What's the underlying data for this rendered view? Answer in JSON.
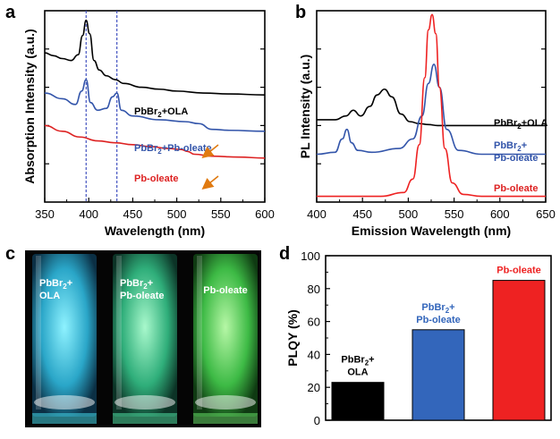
{
  "chart_data": [
    {
      "panel": "a",
      "type": "line",
      "xlabel": "Wavelength (nm)",
      "ylabel": "Absorption Intensity (a.u.)",
      "xlim": [
        350,
        600
      ],
      "xticks": [
        "350",
        "400",
        "450",
        "500",
        "550",
        "600"
      ],
      "grid": false,
      "reference_lines_x": [
        397,
        432
      ],
      "series": [
        {
          "name": "PbBr2+OLA",
          "color": "#000000",
          "x": [
            350,
            360,
            370,
            380,
            388,
            393,
            397,
            401,
            406,
            412,
            420,
            430,
            440,
            460,
            480,
            500,
            530,
            560,
            600
          ],
          "y": [
            0.78,
            0.765,
            0.75,
            0.74,
            0.77,
            0.87,
            0.95,
            0.88,
            0.74,
            0.69,
            0.66,
            0.64,
            0.62,
            0.6,
            0.59,
            0.58,
            0.57,
            0.565,
            0.56
          ]
        },
        {
          "name": "PbBr2+Pb-oleate",
          "color": "#3355aa",
          "x": [
            350,
            370,
            385,
            392,
            397,
            402,
            410,
            420,
            427,
            432,
            437,
            450,
            480,
            510,
            525,
            540,
            560,
            600
          ],
          "y": [
            0.57,
            0.54,
            0.51,
            0.58,
            0.64,
            0.52,
            0.48,
            0.49,
            0.55,
            0.57,
            0.48,
            0.45,
            0.43,
            0.42,
            0.41,
            0.38,
            0.375,
            0.37
          ]
        },
        {
          "name": "Pb-oleate",
          "color": "#dd2222",
          "x": [
            350,
            370,
            390,
            410,
            430,
            450,
            470,
            490,
            505,
            512,
            520,
            540,
            570,
            600
          ],
          "y": [
            0.4,
            0.37,
            0.34,
            0.32,
            0.31,
            0.3,
            0.29,
            0.28,
            0.275,
            0.265,
            0.25,
            0.24,
            0.235,
            0.23
          ]
        }
      ],
      "labels": {
        "ola": {
          "main": "PbBr",
          "sub": "2",
          "rest": "+OLA"
        },
        "mix": {
          "main": "PbBr",
          "sub": "2",
          "rest": "+Pb-oleate"
        },
        "pb": "Pb-oleate"
      }
    },
    {
      "panel": "b",
      "type": "line",
      "xlabel": "Emission Wavelength (nm)",
      "ylabel": "PL Intensity (a.u.)",
      "xlim": [
        400,
        650
      ],
      "xticks": [
        "400",
        "450",
        "500",
        "550",
        "600",
        "650"
      ],
      "grid": false,
      "series": [
        {
          "name": "PbBr2+OLA",
          "color": "#000000",
          "x": [
            400,
            420,
            432,
            440,
            448,
            458,
            466,
            474,
            482,
            492,
            502,
            512,
            522,
            532,
            545,
            560,
            600,
            650
          ],
          "y": [
            0.43,
            0.43,
            0.45,
            0.48,
            0.45,
            0.5,
            0.56,
            0.59,
            0.55,
            0.46,
            0.42,
            0.41,
            0.405,
            0.4,
            0.4,
            0.4,
            0.4,
            0.4
          ]
        },
        {
          "name": "PbBr2+Pb-oleate",
          "color": "#3355aa",
          "x": [
            400,
            420,
            428,
            433,
            438,
            445,
            460,
            490,
            505,
            515,
            522,
            528,
            534,
            542,
            555,
            580,
            620,
            650
          ],
          "y": [
            0.25,
            0.26,
            0.33,
            0.38,
            0.31,
            0.27,
            0.26,
            0.28,
            0.33,
            0.45,
            0.62,
            0.72,
            0.6,
            0.38,
            0.27,
            0.25,
            0.25,
            0.25
          ]
        },
        {
          "name": "Pb-oleate",
          "color": "#ee2222",
          "x": [
            400,
            470,
            495,
            505,
            512,
            518,
            522,
            526,
            530,
            534,
            540,
            548,
            560,
            580,
            650
          ],
          "y": [
            0.03,
            0.03,
            0.05,
            0.12,
            0.3,
            0.65,
            0.9,
            0.98,
            0.88,
            0.6,
            0.28,
            0.1,
            0.04,
            0.03,
            0.03
          ]
        }
      ],
      "labels": {
        "ola": {
          "main": "PbBr",
          "sub": "2",
          "rest": "+OLA"
        },
        "mix1": {
          "main": "PbBr",
          "sub": "2",
          "rest": "+"
        },
        "mix2": "Pb-oleate",
        "pb": "Pb-oleate"
      }
    },
    {
      "panel": "d",
      "type": "bar",
      "ylabel": "PLQY (%)",
      "ylim": [
        0,
        100
      ],
      "yticks": [
        "0",
        "20",
        "40",
        "60",
        "80",
        "100"
      ],
      "grid": false,
      "categories": [
        "PbBr2+OLA",
        "PbBr2+Pb-oleate",
        "Pb-oleate"
      ],
      "values": [
        23,
        55,
        85
      ],
      "colors": [
        "#000000",
        "#3366bb",
        "#ee2222"
      ],
      "bar_labels": [
        {
          "l1": {
            "main": "PbBr",
            "sub": "2",
            "rest": "+"
          },
          "l2": "OLA",
          "color": "#000000"
        },
        {
          "l1": {
            "main": "PbBr",
            "sub": "2",
            "rest": "+"
          },
          "l2": "Pb-oleate",
          "color": "#3366bb"
        },
        {
          "l1": {
            "main": "Pb-oleate",
            "sub": "",
            "rest": ""
          },
          "l2": "",
          "color": "#ee2222"
        }
      ]
    }
  ],
  "panel_letters": {
    "a": "a",
    "b": "b",
    "c": "c",
    "d": "d"
  },
  "photo_c": {
    "vials": [
      {
        "l1": {
          "main": "PbBr",
          "sub": "2",
          "rest": "+"
        },
        "l2": "OLA",
        "glow": "#44d6e8"
      },
      {
        "l1": {
          "main": "PbBr",
          "sub": "2",
          "rest": "+"
        },
        "l2": "Pb-oleate",
        "glow": "#4fdca0"
      },
      {
        "l1": {
          "main": "Pb-oleate",
          "sub": "",
          "rest": ""
        },
        "l2": "",
        "glow": "#66dd66"
      }
    ]
  }
}
